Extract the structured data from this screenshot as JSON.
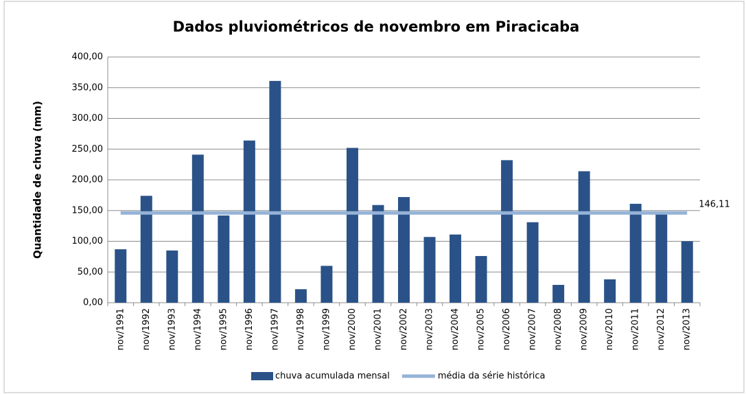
{
  "chart_data": {
    "type": "bar",
    "title": "Dados pluviométricos de novembro em Piracicaba",
    "ylabel": "Quantidade de chuva (mm)",
    "categories": [
      "nov/1991",
      "nov/1992",
      "nov/1993",
      "nov/1994",
      "nov/1995",
      "nov/1996",
      "nov/1997",
      "nov/1998",
      "nov/1999",
      "nov/2000",
      "nov/2001",
      "nov/2002",
      "nov/2003",
      "nov/2004",
      "nov/2005",
      "nov/2006",
      "nov/2007",
      "nov/2008",
      "nov/2009",
      "nov/2010",
      "nov/2011",
      "nov/2012",
      "nov/2013"
    ],
    "series": [
      {
        "name": "chuva acumulada mensal",
        "type": "bar",
        "color": "#2a5288",
        "values": [
          87,
          174,
          85,
          241,
          142,
          264,
          361,
          22,
          60,
          252,
          159,
          172,
          107,
          111,
          76,
          232,
          131,
          29,
          214,
          38,
          161,
          147,
          100
        ]
      },
      {
        "name": "média da série histórica",
        "type": "line",
        "color": "#95b3d7",
        "values": [
          146.11,
          146.11,
          146.11,
          146.11,
          146.11,
          146.11,
          146.11,
          146.11,
          146.11,
          146.11,
          146.11,
          146.11,
          146.11,
          146.11,
          146.11,
          146.11,
          146.11,
          146.11,
          146.11,
          146.11,
          146.11,
          146.11,
          146.11
        ],
        "value_labels": [
          null,
          null,
          null,
          null,
          null,
          null,
          null,
          null,
          null,
          null,
          null,
          null,
          null,
          null,
          null,
          null,
          null,
          null,
          null,
          null,
          null,
          null,
          "146,11"
        ]
      }
    ],
    "ylim": [
      0,
      400
    ],
    "yticks": [
      {
        "value": 0,
        "label": "0,00"
      },
      {
        "value": 50,
        "label": "50,00"
      },
      {
        "value": 100,
        "label": "100,00"
      },
      {
        "value": 150,
        "label": "150,00"
      },
      {
        "value": 200,
        "label": "200,00"
      },
      {
        "value": 250,
        "label": "250,00"
      },
      {
        "value": 300,
        "label": "300,00"
      },
      {
        "value": 350,
        "label": "350,00"
      },
      {
        "value": 400,
        "label": "400,00"
      }
    ],
    "grid": true,
    "legend": "bottom"
  }
}
